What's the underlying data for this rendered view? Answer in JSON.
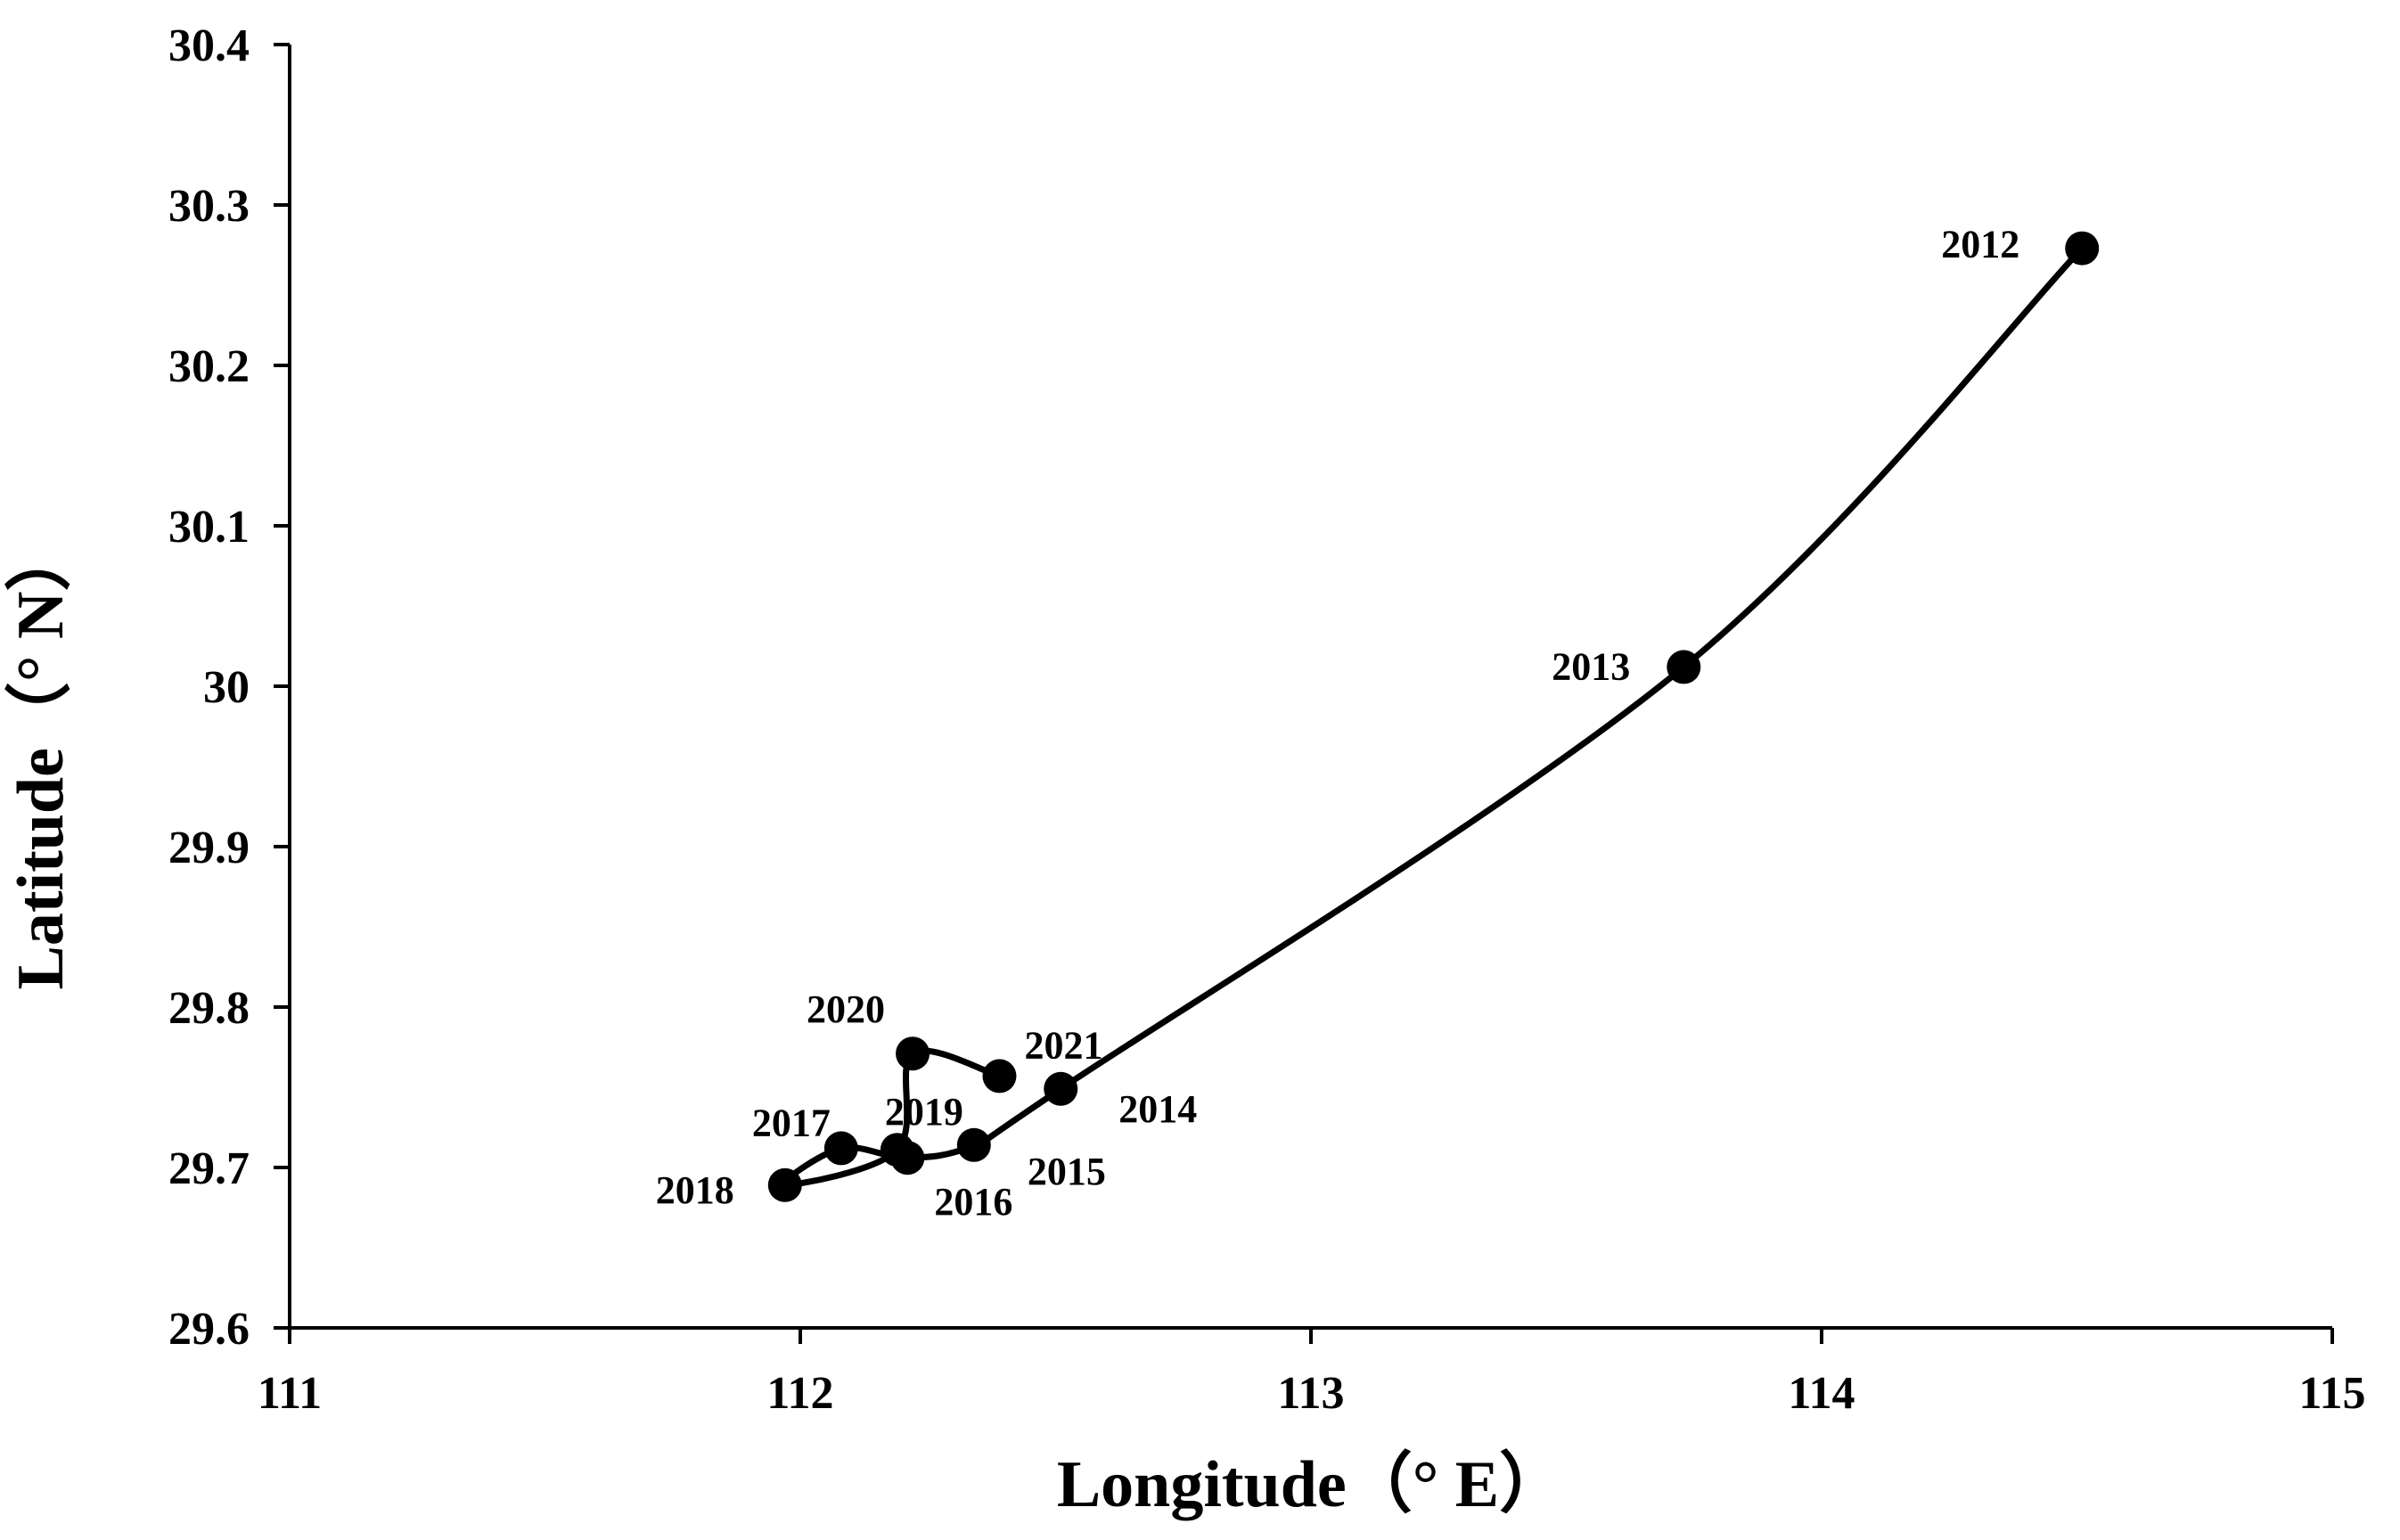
{
  "chart_data": {
    "type": "scatter",
    "xlabel": "Longitude（° E）",
    "ylabel": "Latitude（° N）",
    "xlim": [
      111,
      115
    ],
    "ylim": [
      29.6,
      30.4
    ],
    "xticks": [
      "111",
      "112",
      "113",
      "114",
      "115"
    ],
    "yticks": [
      "29.6",
      "29.7",
      "29.8",
      "29.9",
      "30",
      "30.1",
      "30.2",
      "30.3",
      "30.4"
    ],
    "grid": false,
    "legend": "none",
    "line_color": "#000000",
    "marker_color": "#000000",
    "points": [
      {
        "label": "2012",
        "x": 114.51,
        "y": 30.273
      },
      {
        "label": "2013",
        "x": 113.73,
        "y": 30.012
      },
      {
        "label": "2014",
        "x": 112.51,
        "y": 29.749
      },
      {
        "label": "2015",
        "x": 112.34,
        "y": 29.714
      },
      {
        "label": "2016",
        "x": 112.21,
        "y": 29.706
      },
      {
        "label": "2017",
        "x": 112.08,
        "y": 29.712
      },
      {
        "label": "2018",
        "x": 111.97,
        "y": 29.689
      },
      {
        "label": "2019",
        "x": 112.19,
        "y": 29.711
      },
      {
        "label": "2020",
        "x": 112.22,
        "y": 29.771
      },
      {
        "label": "2021",
        "x": 112.39,
        "y": 29.757
      }
    ]
  }
}
